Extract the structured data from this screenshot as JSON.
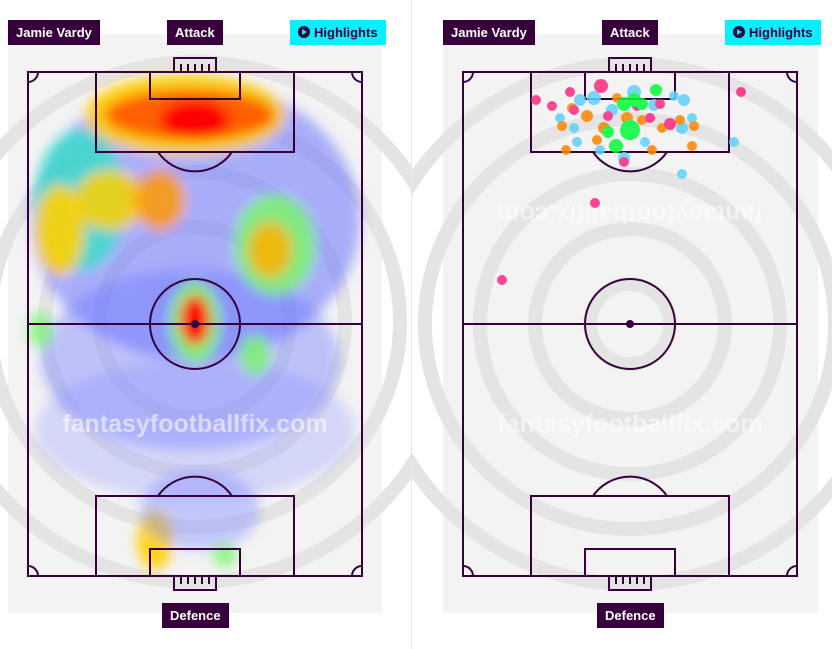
{
  "panels": [
    {
      "id": "heatmap",
      "player_label": "Jamie Vardy",
      "attack_label": "Attack",
      "defence_label": "Defence",
      "highlights_label": "Highlights",
      "watermark": "fantasyfootballfix.com"
    },
    {
      "id": "shotmap",
      "player_label": "Jamie Vardy",
      "attack_label": "Attack",
      "defence_label": "Defence",
      "highlights_label": "Highlights",
      "watermark": "fantasyfootballfix.com",
      "watermark_mirrored": "fantasyfootballfix.com"
    }
  ],
  "colors": {
    "brand_purple": "#37003c",
    "highlight_cyan": "#05f0ff",
    "pitch_bg": "#f2f2f2",
    "shot_goal": "#00ff35",
    "shot_on_target": "#ff8500",
    "shot_off_target": "#ff2882",
    "shot_blocked": "#5fd2ff"
  },
  "icons": {
    "highlights": "play-circle-icon"
  }
}
